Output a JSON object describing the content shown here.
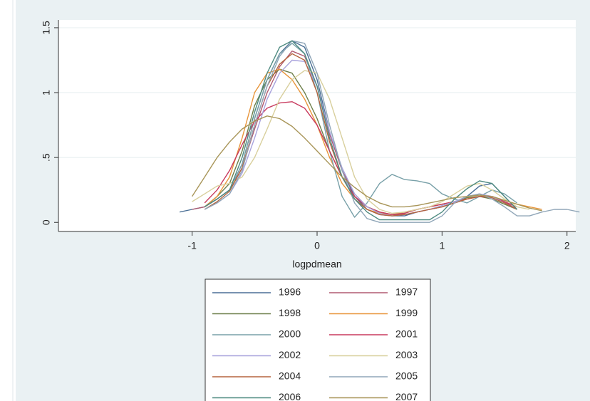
{
  "chart_data": {
    "type": "line",
    "x_label": "logpdmean",
    "x": [
      -1.1,
      -1.0,
      -0.9,
      -0.8,
      -0.7,
      -0.6,
      -0.5,
      -0.4,
      -0.3,
      -0.2,
      -0.1,
      0.0,
      0.1,
      0.2,
      0.3,
      0.4,
      0.5,
      0.6,
      0.7,
      0.8,
      0.9,
      1.0,
      1.1,
      1.2,
      1.3,
      1.4,
      1.5,
      1.6,
      1.7,
      1.8,
      1.9,
      2.0,
      2.1
    ],
    "xlim": [
      -2.07,
      2.07
    ],
    "xticks": [
      -1,
      0,
      1,
      2
    ],
    "ylim": [
      -0.07,
      1.56
    ],
    "yticks": [
      0,
      {
        "value": 0.5,
        "label": ".5"
      },
      1,
      1.5
    ],
    "grid": true,
    "legend": "bottom",
    "series": [
      {
        "name": "1996",
        "color": "#4a6f95",
        "values": [
          0.08,
          0.1,
          0.12,
          0.18,
          0.25,
          0.45,
          0.8,
          1.1,
          1.3,
          1.4,
          1.35,
          1.1,
          0.7,
          0.4,
          0.2,
          0.1,
          0.06,
          0.05,
          0.05,
          0.08,
          0.1,
          0.12,
          0.15,
          0.2,
          0.28,
          0.3,
          0.2,
          0.1,
          null,
          null,
          null,
          null,
          null
        ]
      },
      {
        "name": "1997",
        "color": "#b05a70",
        "values": [
          null,
          0.1,
          0.12,
          0.18,
          0.25,
          0.42,
          0.72,
          1.0,
          1.2,
          1.32,
          1.28,
          1.05,
          0.68,
          0.4,
          0.22,
          0.12,
          0.08,
          0.06,
          0.06,
          0.08,
          0.1,
          0.12,
          0.15,
          0.18,
          0.2,
          0.2,
          0.16,
          0.1,
          null,
          null,
          null,
          null,
          null
        ]
      },
      {
        "name": "1998",
        "color": "#6d7f4a",
        "values": [
          null,
          null,
          0.12,
          0.2,
          0.3,
          0.55,
          0.9,
          1.1,
          1.18,
          1.15,
          1.0,
          0.8,
          0.55,
          0.35,
          0.2,
          0.12,
          0.08,
          0.06,
          0.07,
          0.1,
          0.12,
          0.14,
          0.16,
          0.19,
          0.2,
          0.18,
          0.14,
          0.1,
          null,
          null,
          null,
          null,
          null
        ]
      },
      {
        "name": "1999",
        "color": "#e8953a",
        "values": [
          null,
          null,
          0.12,
          0.2,
          0.35,
          0.65,
          1.0,
          1.15,
          1.18,
          1.1,
          0.95,
          0.75,
          0.5,
          0.3,
          0.18,
          0.1,
          0.07,
          0.06,
          0.08,
          0.1,
          0.12,
          0.14,
          0.16,
          0.18,
          0.2,
          0.2,
          0.17,
          0.14,
          0.12,
          0.1,
          null,
          null,
          null
        ]
      },
      {
        "name": "2000",
        "color": "#78a0a8",
        "values": [
          null,
          null,
          0.12,
          0.18,
          0.25,
          0.45,
          0.8,
          1.1,
          1.3,
          1.38,
          1.3,
          1.0,
          0.55,
          0.2,
          0.04,
          0.15,
          0.3,
          0.37,
          0.33,
          0.32,
          0.3,
          0.22,
          0.18,
          0.15,
          0.2,
          0.25,
          0.22,
          0.15,
          null,
          null,
          null,
          null,
          null
        ]
      },
      {
        "name": "2001",
        "color": "#c83a5e",
        "values": [
          null,
          null,
          0.15,
          0.25,
          0.4,
          0.6,
          0.78,
          0.88,
          0.92,
          0.93,
          0.88,
          0.75,
          0.55,
          0.35,
          0.2,
          0.12,
          0.08,
          0.06,
          0.07,
          0.1,
          0.12,
          0.14,
          0.16,
          0.18,
          0.2,
          0.2,
          0.16,
          0.12,
          null,
          null,
          null,
          null,
          null
        ]
      },
      {
        "name": "2002",
        "color": "#a8a2dc",
        "values": [
          null,
          null,
          0.1,
          0.15,
          0.22,
          0.38,
          0.65,
          0.95,
          1.15,
          1.25,
          1.24,
          1.05,
          0.7,
          0.42,
          0.22,
          0.12,
          0.07,
          0.05,
          0.06,
          0.08,
          0.1,
          0.13,
          0.16,
          0.2,
          0.22,
          0.2,
          0.15,
          0.1,
          null,
          null,
          null,
          null,
          null
        ]
      },
      {
        "name": "2003",
        "color": "#d8cf9c",
        "values": [
          null,
          0.16,
          0.22,
          0.28,
          0.3,
          0.35,
          0.5,
          0.72,
          0.95,
          1.1,
          1.17,
          1.15,
          0.95,
          0.65,
          0.35,
          0.18,
          0.1,
          0.07,
          0.08,
          0.1,
          0.12,
          0.16,
          0.22,
          0.28,
          0.3,
          0.25,
          0.18,
          0.12,
          0.1,
          null,
          null,
          null,
          null
        ]
      },
      {
        "name": "2004",
        "color": "#b5643e",
        "values": [
          null,
          null,
          0.1,
          0.16,
          0.24,
          0.42,
          0.75,
          1.05,
          1.22,
          1.3,
          1.25,
          1.0,
          0.62,
          0.35,
          0.18,
          0.1,
          0.06,
          0.05,
          0.06,
          0.08,
          0.1,
          0.12,
          0.15,
          0.18,
          0.2,
          0.19,
          0.15,
          0.1,
          null,
          null,
          null,
          null,
          null
        ]
      },
      {
        "name": "2005",
        "color": "#90a6b8",
        "values": [
          null,
          null,
          0.1,
          0.15,
          0.22,
          0.4,
          0.75,
          1.05,
          1.28,
          1.4,
          1.38,
          1.15,
          0.75,
          0.4,
          0.15,
          0.03,
          0.0,
          0.0,
          0.0,
          0.0,
          0.0,
          0.05,
          0.15,
          0.2,
          0.22,
          0.18,
          0.12,
          0.05,
          0.05,
          0.08,
          0.1,
          0.1,
          0.08
        ]
      },
      {
        "name": "2006",
        "color": "#4e8a80",
        "values": [
          null,
          null,
          0.12,
          0.18,
          0.25,
          0.5,
          0.85,
          1.15,
          1.35,
          1.4,
          1.3,
          1.05,
          0.65,
          0.35,
          0.18,
          0.08,
          0.02,
          0.02,
          0.02,
          0.02,
          0.02,
          0.08,
          0.18,
          0.26,
          0.32,
          0.3,
          0.2,
          0.1,
          null,
          null,
          null,
          null,
          null
        ]
      },
      {
        "name": "2007",
        "color": "#a89558",
        "values": [
          null,
          0.2,
          0.35,
          0.5,
          0.62,
          0.72,
          0.78,
          0.82,
          0.8,
          0.74,
          0.65,
          0.55,
          0.45,
          0.35,
          0.27,
          0.2,
          0.15,
          0.12,
          0.12,
          0.13,
          0.15,
          0.17,
          0.19,
          0.2,
          0.21,
          0.2,
          0.17,
          0.14,
          0.11,
          0.09,
          null,
          null,
          null
        ]
      }
    ]
  }
}
